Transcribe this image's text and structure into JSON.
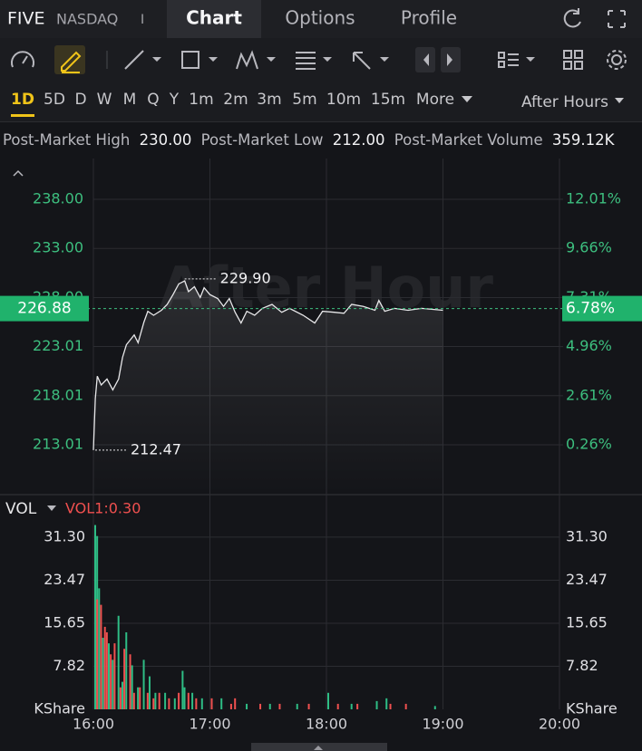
{
  "header": {
    "symbol": "FIVE",
    "exchange": "NASDAQ",
    "separator": "I",
    "tabs": [
      "Chart",
      "Options",
      "Profile"
    ]
  },
  "periods": [
    "1D",
    "5D",
    "D",
    "W",
    "M",
    "Q",
    "Y",
    "1m",
    "2m",
    "3m",
    "5m",
    "10m",
    "15m",
    "More"
  ],
  "session": "After Hours",
  "stats": [
    {
      "label": "Post-Market High",
      "value": "230.00"
    },
    {
      "label": "Post-Market Low",
      "value": "212.00"
    },
    {
      "label": "Post-Market Volume",
      "value": "359.12K"
    }
  ],
  "chart_data": [
    {
      "type": "line",
      "watermark": "After Hour",
      "xlim": [
        0,
        240
      ],
      "ylim": [
        208.03,
        242.15
      ],
      "yticks": [
        {
          "value": 238,
          "label": "238.00"
        },
        {
          "value": 233,
          "label": "233.00"
        },
        {
          "value": 228,
          "label": "228.00"
        },
        {
          "value": 223.01,
          "label": "223.01"
        },
        {
          "value": 218.01,
          "label": "218.01"
        },
        {
          "value": 213.01,
          "label": "213.01"
        }
      ],
      "y2lim": [
        -2.08,
        13.96
      ],
      "y2ticks": [
        {
          "value": 12.01,
          "label": "12.01%"
        },
        {
          "value": 9.66,
          "label": "9.66%"
        },
        {
          "value": 7.31,
          "label": "7.31%"
        },
        {
          "value": 4.96,
          "label": "4.96%"
        },
        {
          "value": 2.61,
          "label": "2.61%"
        },
        {
          "value": 0.26,
          "label": "0.26%"
        }
      ],
      "grid": true,
      "series": [
        {
          "color": "#e8e8ea",
          "x": [
            0,
            1,
            2,
            4,
            7,
            10,
            13,
            15,
            17,
            21,
            23,
            26,
            28,
            31,
            35,
            38,
            41,
            44,
            47,
            49,
            52,
            55,
            57,
            60,
            64,
            67,
            70,
            73,
            76,
            79,
            83,
            87,
            92,
            97,
            101,
            108,
            114,
            118,
            124,
            129,
            133,
            139,
            145,
            147,
            150,
            155,
            162,
            169,
            180
          ],
          "values": [
            212.47,
            217.7,
            220.0,
            219.1,
            219.7,
            218.6,
            219.7,
            221.9,
            223.2,
            224.2,
            223.4,
            225.5,
            226.6,
            226.2,
            226.7,
            227.3,
            228.3,
            229.4,
            229.7,
            228.6,
            229.1,
            228.0,
            229.0,
            228.3,
            227.9,
            227.1,
            227.9,
            226.5,
            225.4,
            226.6,
            226.2,
            226.9,
            227.3,
            226.5,
            226.9,
            226.2,
            225.4,
            226.6,
            226.5,
            226.4,
            227.3,
            227.1,
            226.7,
            227.7,
            226.6,
            226.9,
            226.7,
            226.9,
            226.7
          ]
        }
      ],
      "high": {
        "x": 47,
        "value": 229.9,
        "label": "229.90"
      },
      "low": {
        "x": 0,
        "value": 212.47,
        "label": "212.47"
      },
      "last": {
        "value": 226.88,
        "label": "226.88"
      },
      "last_change": {
        "value": 6.78,
        "label": "6.78%"
      }
    },
    {
      "type": "bar",
      "title": "VOL",
      "indicator": "VOL1:0.30",
      "unit": "KShare",
      "xlim": [
        0,
        240
      ],
      "xticks": [
        {
          "value": 0,
          "label": "16:00"
        },
        {
          "value": 60,
          "label": "17:00"
        },
        {
          "value": 120,
          "label": "18:00"
        },
        {
          "value": 180,
          "label": "19:00"
        },
        {
          "value": 240,
          "label": "20:00"
        }
      ],
      "ylim": [
        0,
        38.7
      ],
      "yticks": [
        {
          "value": 7.82,
          "label": "7.82"
        },
        {
          "value": 15.65,
          "label": "15.65"
        },
        {
          "value": 23.47,
          "label": "23.47"
        },
        {
          "value": 31.3,
          "label": "31.30"
        }
      ],
      "grid": true,
      "series": [
        {
          "color": "#2ebd85",
          "x": [
            0,
            1,
            2,
            4,
            7,
            9,
            12,
            14,
            16,
            19,
            22,
            25,
            28,
            31,
            36,
            41,
            45,
            46,
            50,
            55,
            65,
            78,
            90,
            104,
            120,
            132,
            145,
            150,
            175
          ],
          "values": [
            33.5,
            31.5,
            22,
            13,
            12,
            9,
            17,
            5,
            14,
            8,
            4,
            9,
            6,
            3,
            3,
            2,
            7,
            4,
            3,
            2,
            2,
            1,
            1,
            1,
            3,
            1,
            1.5,
            2,
            0.6
          ]
        },
        {
          "color": "#f0504f",
          "x": [
            1,
            3,
            5,
            6,
            8,
            10,
            13,
            15,
            18,
            20,
            23,
            27,
            30,
            33,
            38,
            43,
            48,
            52,
            60,
            70,
            72,
            85,
            95,
            110,
            125,
            135,
            152,
            160
          ],
          "values": [
            20,
            19,
            15,
            14,
            10,
            12,
            4,
            11,
            10,
            3,
            4,
            3,
            2,
            3,
            2,
            3,
            3,
            2,
            2,
            1,
            2,
            1,
            1,
            1,
            1,
            1,
            1,
            1
          ]
        }
      ]
    }
  ]
}
